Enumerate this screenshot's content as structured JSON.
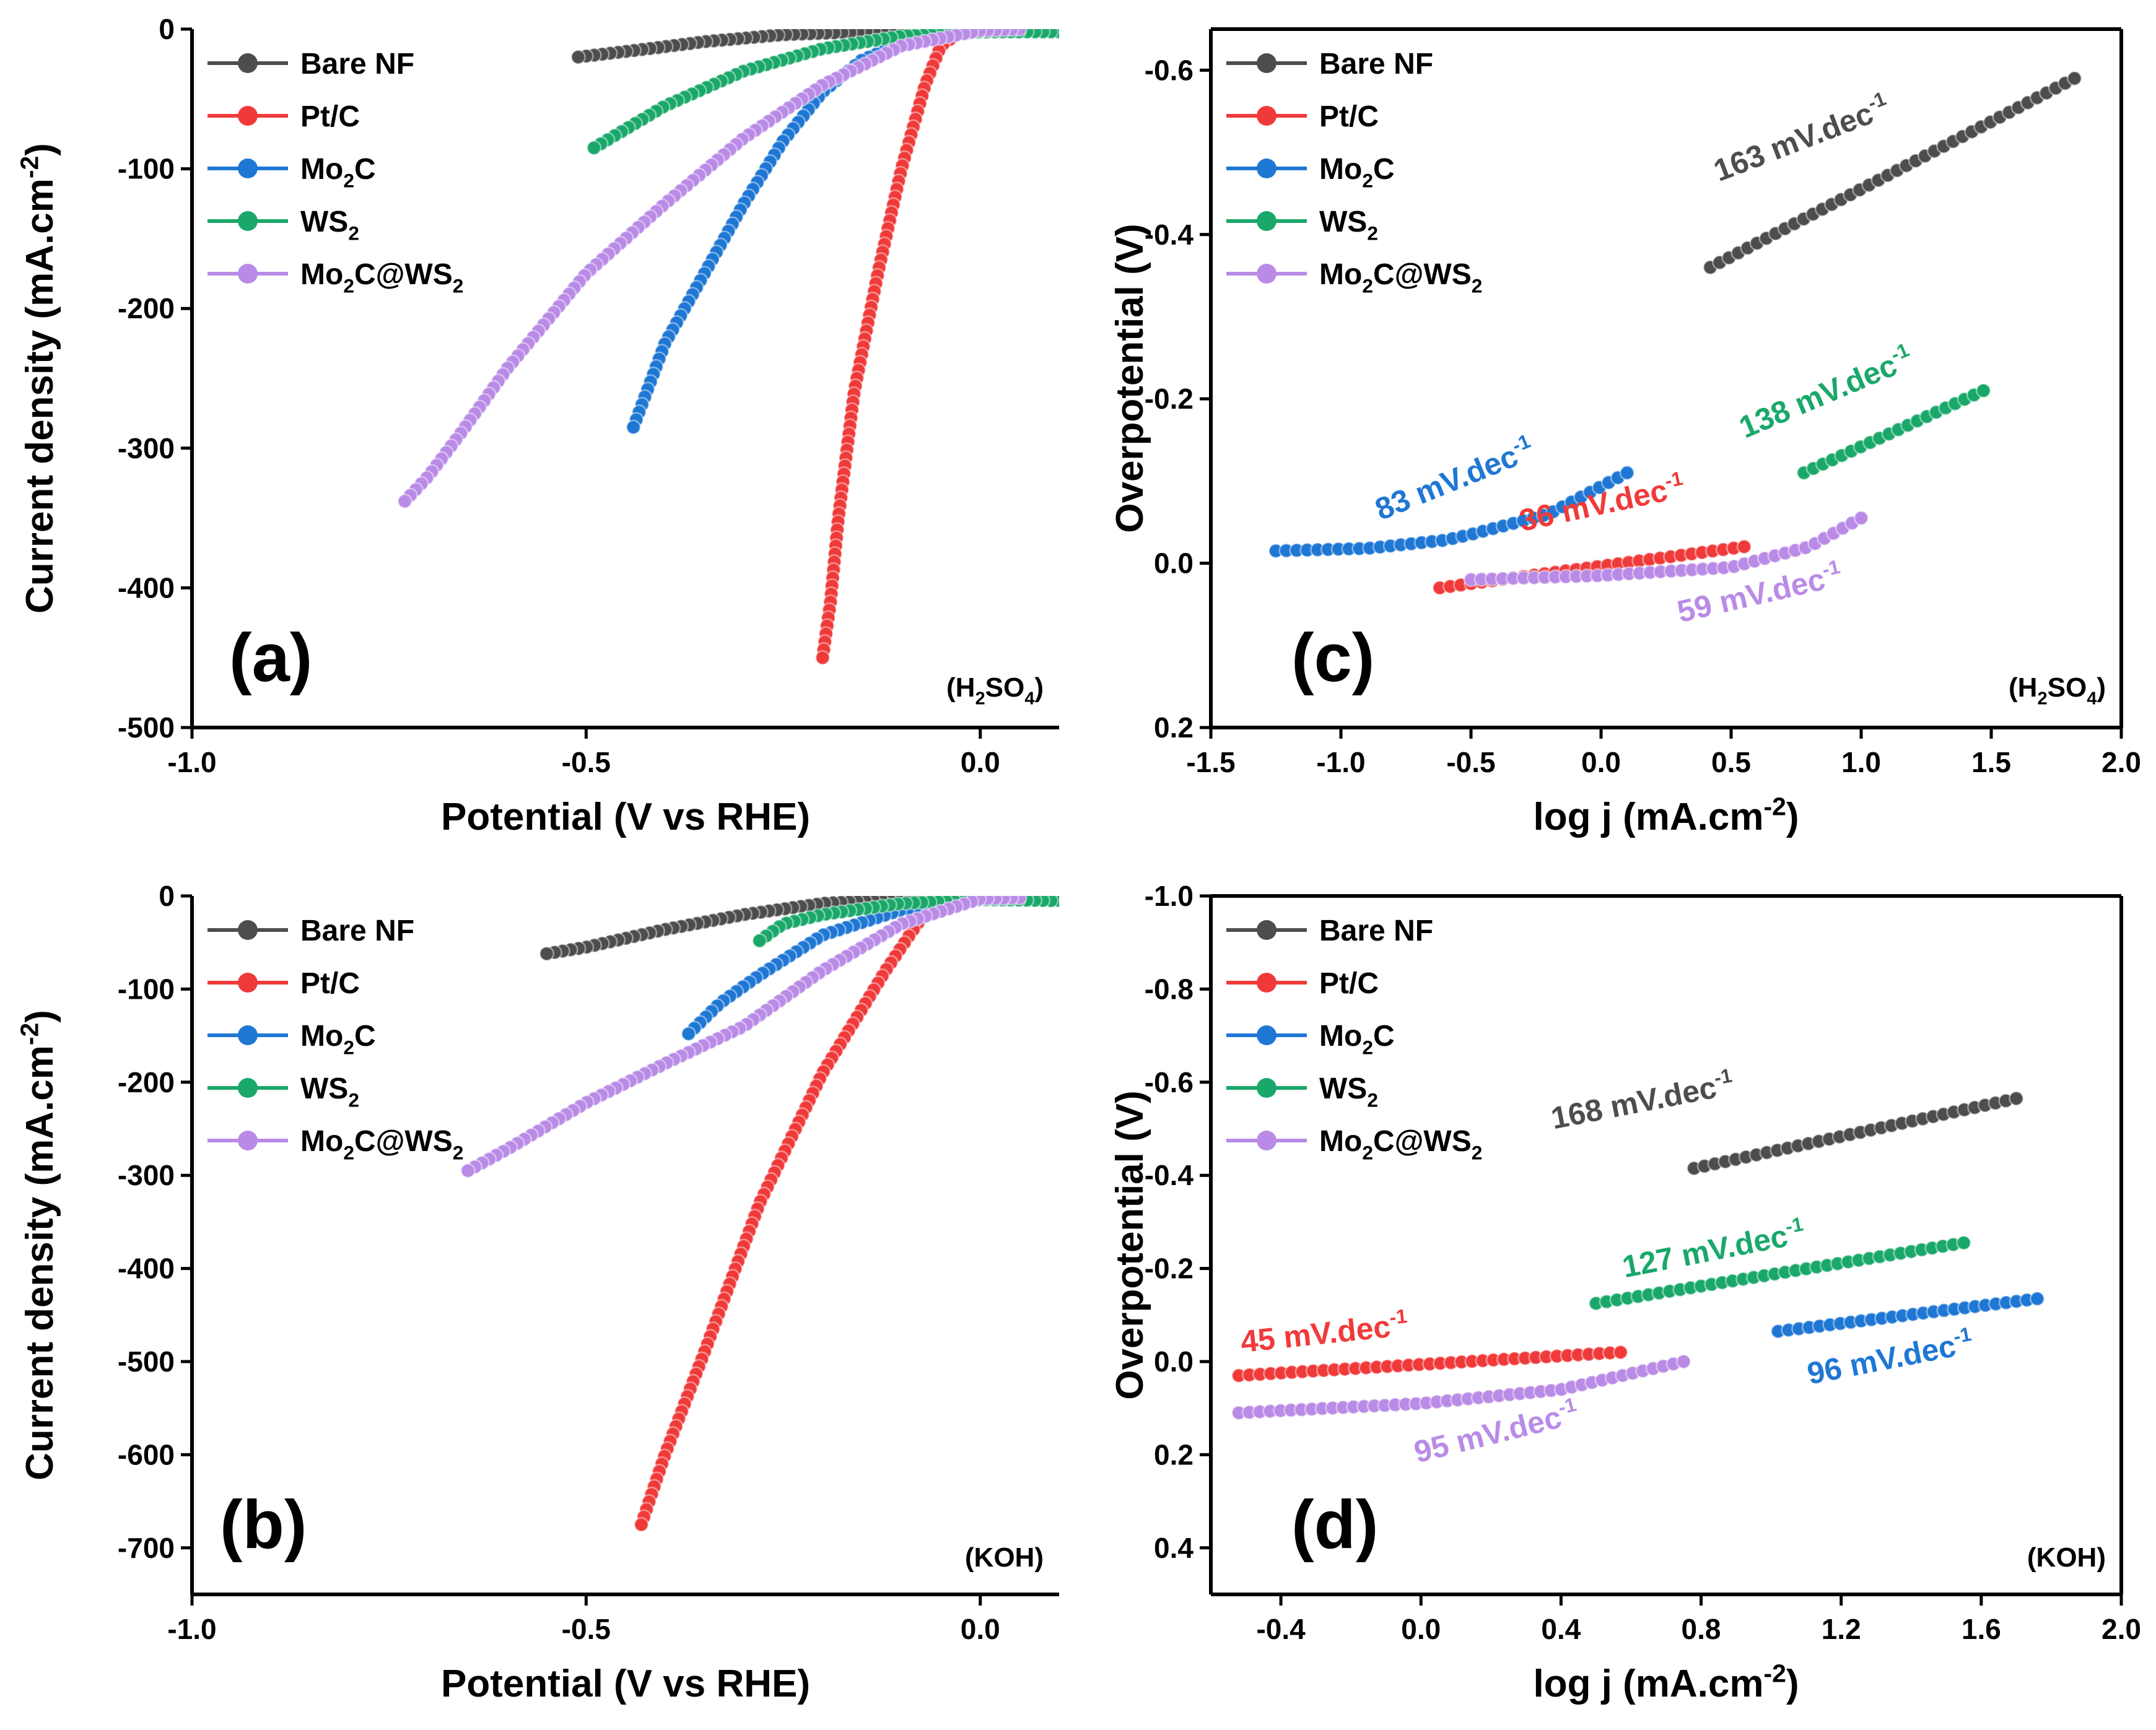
{
  "chart_data": [
    {
      "type": "line",
      "panel": "a",
      "title": "",
      "xlabel": "Potential (V vs RHE)",
      "ylabel": "Current density (mA.cm-2)",
      "xlim": [
        -1.0,
        0.1
      ],
      "ylim": [
        -500,
        0
      ],
      "xticks": [
        -1.0,
        -0.5,
        0.0
      ],
      "xtick_labels": [
        "-1.0",
        "-0.5",
        "0.0"
      ],
      "yticks": [
        0,
        -100,
        -200,
        -300,
        -400,
        -500
      ],
      "ytick_labels": [
        "0",
        "-100",
        "-200",
        "-300",
        "-400",
        "-500"
      ],
      "panel_label": "(a)",
      "electrolyte": "(H2SO4)",
      "electrolyte_parts": {
        "a": "(H",
        "s1": "2",
        "b": "SO",
        "s2": "4",
        "c": ")"
      },
      "legend_position": "top-left",
      "series": [
        {
          "name": "Bare NF",
          "color": "#4d4d4d",
          "points": [
            [
              0.1,
              0
            ],
            [
              -0.1,
              -1
            ],
            [
              -0.25,
              -4
            ],
            [
              -0.35,
              -9
            ],
            [
              -0.42,
              -14
            ],
            [
              -0.51,
              -20
            ]
          ]
        },
        {
          "name": "Pt/C",
          "color": "#f03a3a",
          "points": [
            [
              0.1,
              0
            ],
            [
              -0.02,
              0
            ],
            [
              -0.05,
              -12
            ],
            [
              -0.07,
              -40
            ],
            [
              -0.1,
              -100
            ],
            [
              -0.13,
              -175
            ],
            [
              -0.16,
              -260
            ],
            [
              -0.18,
              -350
            ],
            [
              -0.19,
              -410
            ],
            [
              -0.2,
              -450
            ]
          ]
        },
        {
          "name": "Mo2C",
          "color": "#1f77d4",
          "points": [
            [
              0.1,
              -2
            ],
            [
              0,
              -2
            ],
            [
              -0.08,
              -6
            ],
            [
              -0.15,
              -22
            ],
            [
              -0.2,
              -45
            ],
            [
              -0.25,
              -80
            ],
            [
              -0.3,
              -125
            ],
            [
              -0.35,
              -175
            ],
            [
              -0.4,
              -225
            ],
            [
              -0.44,
              -285
            ]
          ]
        },
        {
          "name": "WS2",
          "color": "#1aa86a",
          "points": [
            [
              0.1,
              -2
            ],
            [
              0,
              -2
            ],
            [
              -0.1,
              -5
            ],
            [
              -0.2,
              -14
            ],
            [
              -0.3,
              -30
            ],
            [
              -0.4,
              -55
            ],
            [
              -0.49,
              -85
            ]
          ]
        },
        {
          "name": "Mo2C@WS2",
          "color": "#b98be6",
          "points": [
            [
              0.05,
              0
            ],
            [
              0,
              -1
            ],
            [
              -0.1,
              -12
            ],
            [
              -0.2,
              -40
            ],
            [
              -0.3,
              -78
            ],
            [
              -0.4,
              -125
            ],
            [
              -0.5,
              -175
            ],
            [
              -0.6,
              -243
            ],
            [
              -0.66,
              -290
            ],
            [
              -0.7,
              -320
            ],
            [
              -0.73,
              -338
            ]
          ]
        }
      ]
    },
    {
      "type": "line",
      "panel": "b",
      "title": "",
      "xlabel": "Potential (V vs RHE)",
      "ylabel": "Current density (mA.cm-2)",
      "xlim": [
        -1.0,
        0.1
      ],
      "ylim": [
        -750,
        0
      ],
      "xticks": [
        -1.0,
        -0.5,
        0.0
      ],
      "xtick_labels": [
        "-1.0",
        "-0.5",
        "0.0"
      ],
      "yticks": [
        0,
        -100,
        -200,
        -300,
        -400,
        -500,
        -600,
        -700
      ],
      "ytick_labels": [
        "0",
        "-100",
        "-200",
        "-300",
        "-400",
        "-500",
        "-600",
        "-700"
      ],
      "panel_label": "(b)",
      "electrolyte": "(KOH)",
      "legend_position": "top-left",
      "series": [
        {
          "name": "Bare NF",
          "color": "#4d4d4d",
          "points": [
            [
              0.1,
              -3
            ],
            [
              -0.1,
              -3
            ],
            [
              -0.2,
              -8
            ],
            [
              -0.3,
              -20
            ],
            [
              -0.4,
              -36
            ],
            [
              -0.5,
              -55
            ],
            [
              -0.55,
              -62
            ]
          ]
        },
        {
          "name": "Pt/C",
          "color": "#f03a3a",
          "points": [
            [
              0.1,
              -5
            ],
            [
              -0.05,
              -2
            ],
            [
              -0.08,
              -30
            ],
            [
              -0.12,
              -80
            ],
            [
              -0.2,
              -190
            ],
            [
              -0.28,
              -330
            ],
            [
              -0.35,
              -490
            ],
            [
              -0.4,
              -600
            ],
            [
              -0.43,
              -675
            ]
          ]
        },
        {
          "name": "Mo2C",
          "color": "#1f77d4",
          "points": [
            [
              0.1,
              -5
            ],
            [
              0,
              -4
            ],
            [
              -0.1,
              -15
            ],
            [
              -0.2,
              -42
            ],
            [
              -0.28,
              -85
            ],
            [
              -0.33,
              -115
            ],
            [
              -0.37,
              -148
            ]
          ]
        },
        {
          "name": "WS2",
          "color": "#1aa86a",
          "points": [
            [
              0.1,
              -5
            ],
            [
              0,
              -4
            ],
            [
              -0.1,
              -8
            ],
            [
              -0.2,
              -20
            ],
            [
              -0.25,
              -30
            ],
            [
              -0.28,
              -48
            ]
          ]
        },
        {
          "name": "Mo2C@WS2",
          "color": "#b98be6",
          "points": [
            [
              0.05,
              -2
            ],
            [
              0,
              -3
            ],
            [
              -0.1,
              -30
            ],
            [
              -0.2,
              -80
            ],
            [
              -0.3,
              -140
            ],
            [
              -0.4,
              -180
            ],
            [
              -0.5,
              -222
            ],
            [
              -0.6,
              -272
            ],
            [
              -0.65,
              -295
            ]
          ]
        }
      ]
    },
    {
      "type": "scatter",
      "panel": "c",
      "title": "",
      "xlabel": "log j (mA.cm-2)",
      "ylabel": "Overpotential (V)",
      "xlim": [
        -1.5,
        2.0
      ],
      "ylim": [
        0.2,
        -0.65
      ],
      "xticks": [
        -1.5,
        -1.0,
        -0.5,
        0.0,
        0.5,
        1.0,
        1.5,
        2.0
      ],
      "xtick_labels": [
        "-1.5",
        "-1.0",
        "-0.5",
        "0.0",
        "0.5",
        "1.0",
        "1.5",
        "2.0"
      ],
      "yticks": [
        -0.6,
        -0.4,
        -0.2,
        0.0,
        0.2
      ],
      "ytick_labels": [
        "-0.6",
        "-0.4",
        "-0.2",
        "0.0",
        "0.2"
      ],
      "panel_label": "(c)",
      "electrolyte": "(H2SO4)",
      "electrolyte_parts": {
        "a": "(H",
        "s1": "2",
        "b": "SO",
        "s2": "4",
        "c": ")"
      },
      "legend_position": "top-left",
      "series": [
        {
          "name": "Bare NF",
          "color": "#4d4d4d",
          "points": [
            [
              0.42,
              -0.36
            ],
            [
              1.82,
              -0.59
            ]
          ],
          "tafel": "163 mV.dec"
        },
        {
          "name": "Pt/C",
          "color": "#f03a3a",
          "points": [
            [
              -0.62,
              0.03
            ],
            [
              0.55,
              -0.02
            ]
          ],
          "tafel": "36 mV.dec"
        },
        {
          "name": "Mo2C",
          "color": "#1f77d4",
          "points": [
            [
              -1.25,
              -0.015
            ],
            [
              -0.9,
              -0.018
            ],
            [
              -0.6,
              -0.028
            ],
            [
              -0.5,
              -0.035
            ],
            [
              -0.2,
              -0.06
            ],
            [
              0.1,
              -0.11
            ]
          ],
          "tafel": "83 mV.dec"
        },
        {
          "name": "WS2",
          "color": "#1aa86a",
          "points": [
            [
              0.78,
              -0.11
            ],
            [
              1.47,
              -0.21
            ]
          ],
          "tafel": "138 mV.dec"
        },
        {
          "name": "Mo2C@WS2",
          "color": "#b98be6",
          "points": [
            [
              -0.5,
              0.02
            ],
            [
              0,
              0.015
            ],
            [
              0.5,
              0.005
            ],
            [
              0.8,
              -0.02
            ],
            [
              1.0,
              -0.055
            ]
          ],
          "tafel": "59 mV.dec"
        }
      ]
    },
    {
      "type": "scatter",
      "panel": "d",
      "title": "",
      "xlabel": "log j (mA.cm-2)",
      "ylabel": "Overpotential (V)",
      "xlim": [
        -0.6,
        2.0
      ],
      "ylim": [
        0.5,
        -1.0
      ],
      "xticks": [
        -0.4,
        0.0,
        0.4,
        0.8,
        1.2,
        1.6,
        2.0
      ],
      "xtick_labels": [
        "-0.4",
        "0.0",
        "0.4",
        "0.8",
        "1.2",
        "1.6",
        "2.0"
      ],
      "yticks": [
        -1.0,
        -0.8,
        -0.6,
        -0.4,
        -0.2,
        0.0,
        0.2,
        0.4
      ],
      "ytick_labels": [
        "-1.0",
        "-0.8",
        "-0.6",
        "-0.4",
        "-0.2",
        "0.0",
        "0.2",
        "0.4"
      ],
      "panel_label": "(d)",
      "electrolyte": "(KOH)",
      "legend_position": "top-left",
      "series": [
        {
          "name": "Bare NF",
          "color": "#4d4d4d",
          "points": [
            [
              0.78,
              -0.415
            ],
            [
              1.7,
              -0.565
            ]
          ],
          "tafel": "168 mV.dec"
        },
        {
          "name": "Pt/C",
          "color": "#f03a3a",
          "points": [
            [
              -0.52,
              0.03
            ],
            [
              0.57,
              -0.02
            ]
          ],
          "tafel": "45 mV.dec"
        },
        {
          "name": "Mo2C",
          "color": "#1f77d4",
          "points": [
            [
              1.02,
              -0.065
            ],
            [
              1.76,
              -0.135
            ]
          ],
          "tafel": "96 mV.dec"
        },
        {
          "name": "WS2",
          "color": "#1aa86a",
          "points": [
            [
              0.5,
              -0.125
            ],
            [
              1.55,
              -0.255
            ]
          ],
          "tafel": "127 mV.dec"
        },
        {
          "name": "Mo2C@WS2",
          "color": "#b98be6",
          "points": [
            [
              -0.52,
              0.11
            ],
            [
              0,
              0.09
            ],
            [
              0.4,
              0.06
            ],
            [
              0.75,
              0.0
            ]
          ],
          "tafel": "95 mV.dec"
        }
      ]
    }
  ],
  "legend": {
    "bare": "Bare NF",
    "ptc": "Pt/C",
    "mo_a": "Mo",
    "mo_s": "2",
    "mo_b": "C",
    "ws_a": "WS",
    "ws_s": "2",
    "cmp_a": "Mo",
    "cmp_s1": "2",
    "cmp_b": "C@WS",
    "cmp_s2": "2"
  },
  "ylabel_parts": {
    "cd": "Current density (mA.cm",
    "cd_sup": "-2",
    "cd_end": ")",
    "op": "Overpotential (V)"
  },
  "xlabel_parts": {
    "pot": "Potential (V vs RHE)",
    "log": "log j (mA.cm",
    "log_sup": "-2",
    "log_end": ")"
  },
  "tafel_unit_sup": "-1"
}
